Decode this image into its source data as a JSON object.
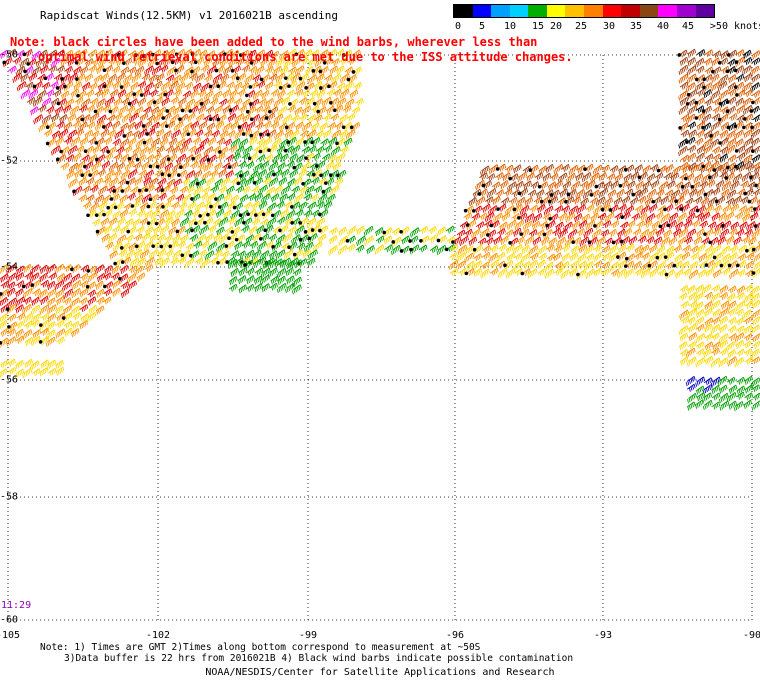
{
  "title": "Rapidscat Winds(12.5KM) v1 2016021B ascending",
  "legend": {
    "colors": [
      "#000000",
      "#0000ff",
      "#00a0ff",
      "#00d0ff",
      "#00b000",
      "#ffff00",
      "#ffc000",
      "#ff8000",
      "#ff0000",
      "#c00000",
      "#8b4513",
      "#ff00ff",
      "#a000d0",
      "#6000a0"
    ],
    "labels": [
      "0",
      "5",
      "10",
      "15",
      "20",
      "25",
      "30",
      "35",
      "40",
      "45",
      ">50 knots"
    ]
  },
  "note": {
    "line1": "Note: black circles have been added to the wind barbs, wherever less than",
    "line2": "optimal wind retrieval conditions are met due to the ISS attitude changes."
  },
  "axes": {
    "lat_labels": [
      "-50",
      "-52",
      "-54",
      "-56",
      "-58",
      "-60"
    ],
    "lon_labels": [
      "-105",
      "-102",
      "-99",
      "-96",
      "-93",
      "-90"
    ]
  },
  "timestamp": "11:29",
  "footnote": {
    "line1": "Note: 1) Times are GMT 2)Times along bottom correspond to measurement at ~50S",
    "line2": "3)Data buffer is 22 hrs from 2016021B 4) Black wind barbs indicate possible contamination"
  },
  "credit": "NOAA/NESDIS/Center for Satellite Applications and Research",
  "barb_colors": {
    "calm": "#000000",
    "green": "#00a000",
    "yellow": "#ffd800",
    "orange": "#ff9000",
    "darkorange": "#e06000",
    "red": "#e00000",
    "brown": "#a04010",
    "magenta": "#ff00ff",
    "blue": "#0000c0"
  }
}
